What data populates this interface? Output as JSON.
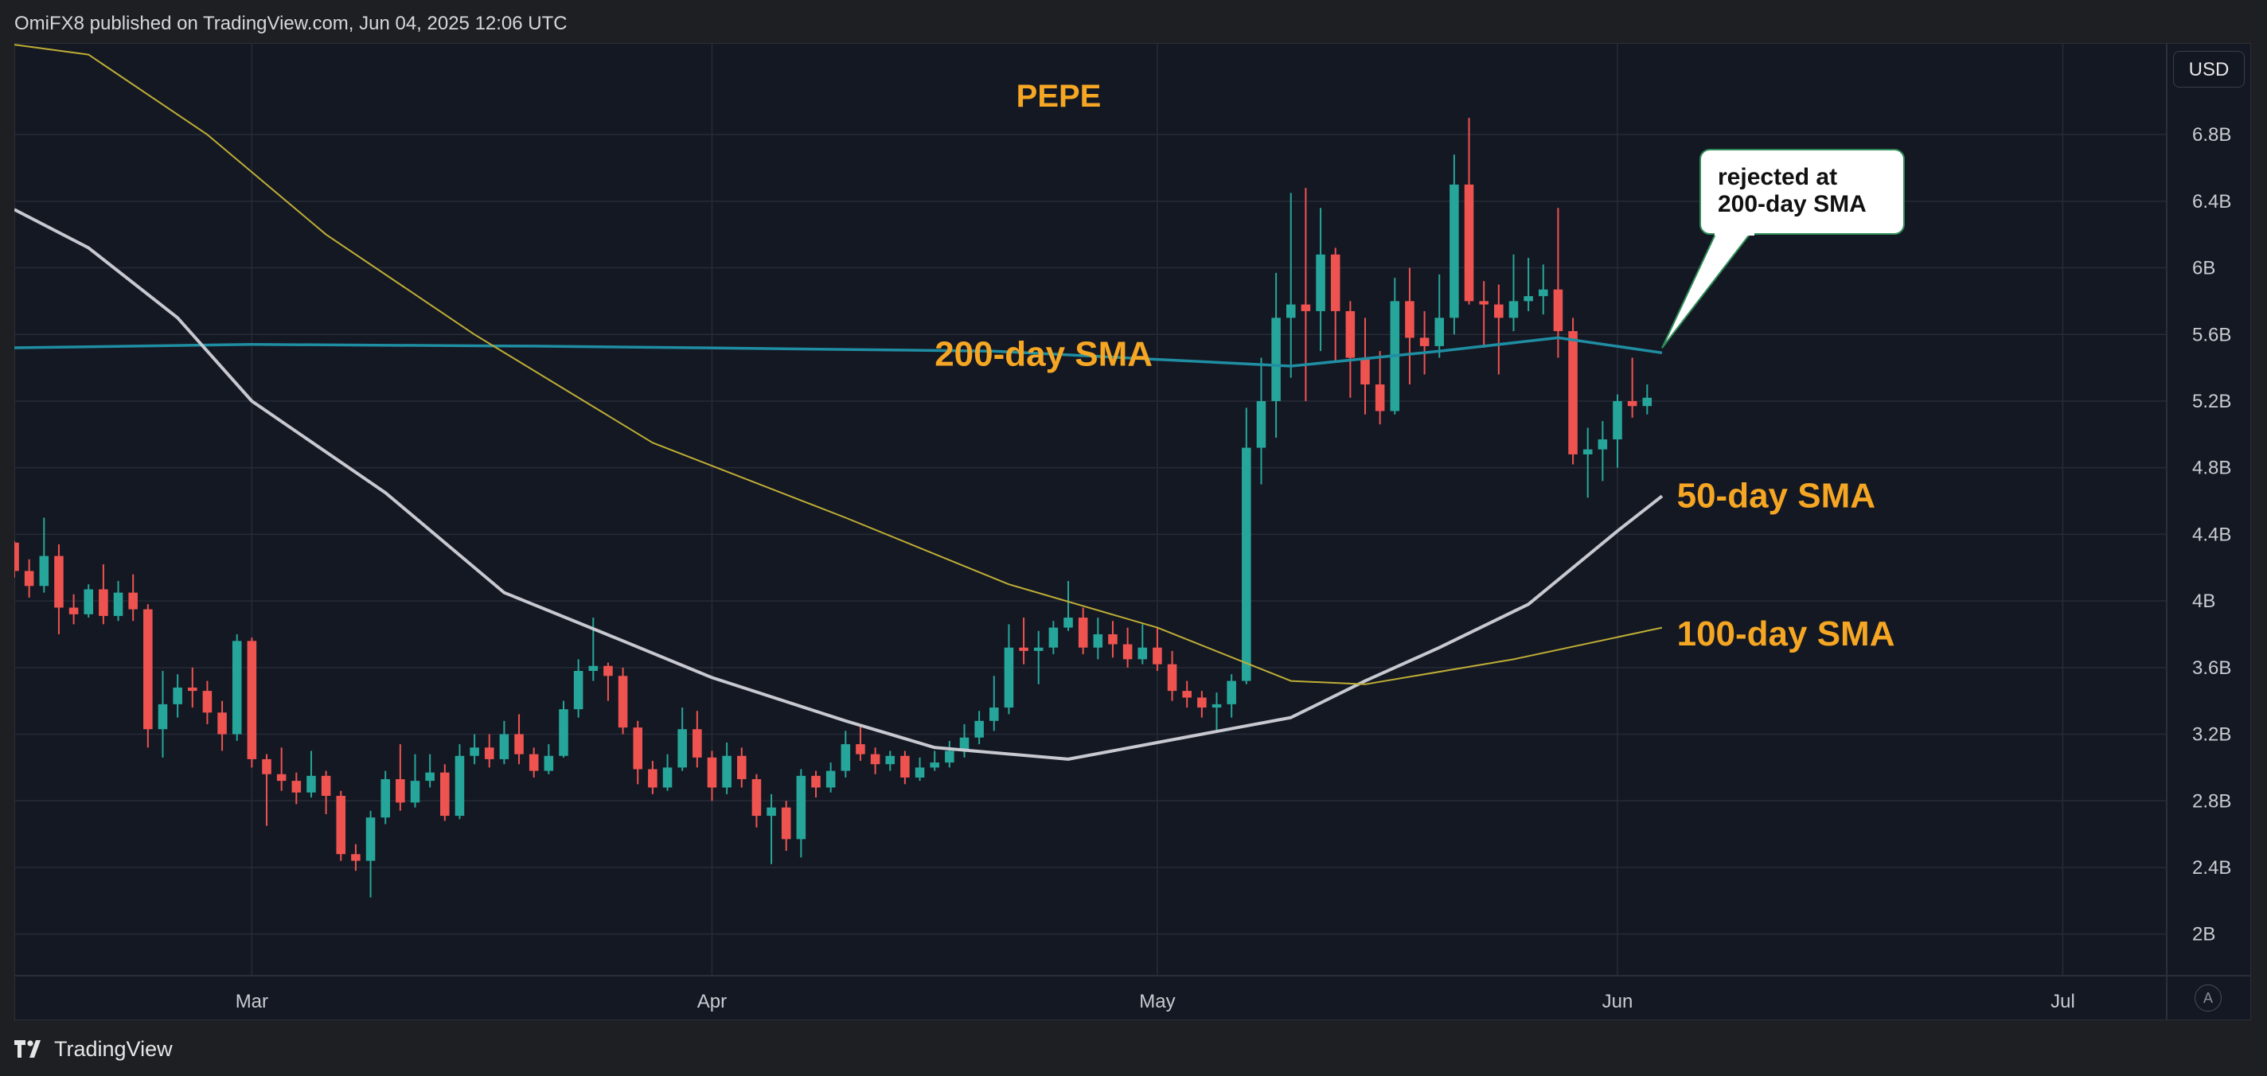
{
  "header": {
    "published_text": "OmiFX8 published on TradingView.com, Jun 04, 2025 12:06 UTC"
  },
  "footer": {
    "brand": "TradingView",
    "logo_icon": "tradingview-logo-icon"
  },
  "controls": {
    "currency": "USD",
    "auto_scale": "A"
  },
  "chart_data": {
    "type": "candlestick",
    "title": "PEPE",
    "y_unit": "market cap (USD)",
    "ylim": [
      1.75,
      7.35
    ],
    "y_ticks": [
      "2B",
      "2.4B",
      "2.8B",
      "3.2B",
      "3.6B",
      "4B",
      "4.4B",
      "4.8B",
      "5.2B",
      "5.6B",
      "6B",
      "6.4B",
      "6.8B"
    ],
    "y_tick_values": [
      2.0,
      2.4,
      2.8,
      3.2,
      3.6,
      4.0,
      4.4,
      4.8,
      5.2,
      5.6,
      6.0,
      6.4,
      6.8
    ],
    "x_start": "2025-02-13",
    "x_end": "2025-07-08",
    "x_ticks": [
      {
        "label": "Mar",
        "date": "2025-03-01"
      },
      {
        "label": "Apr",
        "date": "2025-04-01"
      },
      {
        "label": "May",
        "date": "2025-05-01"
      },
      {
        "label": "Jun",
        "date": "2025-06-01"
      },
      {
        "label": "Jul",
        "date": "2025-07-01"
      }
    ],
    "grid": true,
    "colors": {
      "up": "#26a69a",
      "down": "#ef5350",
      "sma200": "#1f8ea3",
      "sma50": "#c8c9d0",
      "sma100": "#bfae35",
      "label": "#f5a623"
    },
    "candles_start": "2025-02-13",
    "candles": [
      [
        4.35,
        4.18,
        4.36,
        4.14
      ],
      [
        4.18,
        4.09,
        4.25,
        4.02
      ],
      [
        4.09,
        4.27,
        4.5,
        4.05
      ],
      [
        4.27,
        3.96,
        4.34,
        3.8
      ],
      [
        3.96,
        3.92,
        4.04,
        3.86
      ],
      [
        3.92,
        4.07,
        4.1,
        3.9
      ],
      [
        4.07,
        3.91,
        4.22,
        3.86
      ],
      [
        3.91,
        4.05,
        4.12,
        3.88
      ],
      [
        4.05,
        3.95,
        4.16,
        3.88
      ],
      [
        3.95,
        3.23,
        3.98,
        3.12
      ],
      [
        3.23,
        3.38,
        3.58,
        3.06
      ],
      [
        3.38,
        3.48,
        3.56,
        3.3
      ],
      [
        3.48,
        3.46,
        3.6,
        3.36
      ],
      [
        3.46,
        3.33,
        3.52,
        3.26
      ],
      [
        3.33,
        3.2,
        3.4,
        3.1
      ],
      [
        3.2,
        3.76,
        3.8,
        3.16
      ],
      [
        3.76,
        3.05,
        3.78,
        3.0
      ],
      [
        3.05,
        2.96,
        3.08,
        2.65
      ],
      [
        2.96,
        2.92,
        3.12,
        2.86
      ],
      [
        2.92,
        2.85,
        2.97,
        2.78
      ],
      [
        2.85,
        2.95,
        3.1,
        2.82
      ],
      [
        2.95,
        2.83,
        2.98,
        2.72
      ],
      [
        2.83,
        2.48,
        2.86,
        2.44
      ],
      [
        2.48,
        2.44,
        2.54,
        2.38
      ],
      [
        2.44,
        2.7,
        2.74,
        2.22
      ],
      [
        2.7,
        2.93,
        2.98,
        2.66
      ],
      [
        2.93,
        2.79,
        3.14,
        2.74
      ],
      [
        2.79,
        2.92,
        3.08,
        2.76
      ],
      [
        2.92,
        2.97,
        3.08,
        2.88
      ],
      [
        2.97,
        2.71,
        3.02,
        2.68
      ],
      [
        2.71,
        3.07,
        3.14,
        2.69
      ],
      [
        3.07,
        3.12,
        3.2,
        3.02
      ],
      [
        3.12,
        3.05,
        3.2,
        3.0
      ],
      [
        3.05,
        3.2,
        3.28,
        3.02
      ],
      [
        3.2,
        3.08,
        3.32,
        3.02
      ],
      [
        3.08,
        2.98,
        3.12,
        2.94
      ],
      [
        2.98,
        3.07,
        3.14,
        2.96
      ],
      [
        3.07,
        3.35,
        3.4,
        3.06
      ],
      [
        3.35,
        3.58,
        3.65,
        3.3
      ],
      [
        3.58,
        3.61,
        3.9,
        3.52
      ],
      [
        3.61,
        3.55,
        3.63,
        3.4
      ],
      [
        3.55,
        3.24,
        3.6,
        3.2
      ],
      [
        3.24,
        2.99,
        3.28,
        2.9
      ],
      [
        2.99,
        2.88,
        3.04,
        2.84
      ],
      [
        2.88,
        3.0,
        3.08,
        2.86
      ],
      [
        3.0,
        3.23,
        3.36,
        2.98
      ],
      [
        3.23,
        3.06,
        3.34,
        3.0
      ],
      [
        3.06,
        2.88,
        3.1,
        2.8
      ],
      [
        2.88,
        3.07,
        3.15,
        2.84
      ],
      [
        3.07,
        2.93,
        3.12,
        2.88
      ],
      [
        2.93,
        2.71,
        2.96,
        2.64
      ],
      [
        2.71,
        2.76,
        2.84,
        2.42
      ],
      [
        2.76,
        2.57,
        2.8,
        2.5
      ],
      [
        2.57,
        2.95,
        2.99,
        2.46
      ],
      [
        2.95,
        2.88,
        2.98,
        2.82
      ],
      [
        2.88,
        2.98,
        3.03,
        2.85
      ],
      [
        2.98,
        3.14,
        3.22,
        2.94
      ],
      [
        3.14,
        3.08,
        3.26,
        3.04
      ],
      [
        3.08,
        3.02,
        3.12,
        2.96
      ],
      [
        3.02,
        3.07,
        3.1,
        2.98
      ],
      [
        3.07,
        2.94,
        3.1,
        2.9
      ],
      [
        2.94,
        3.0,
        3.06,
        2.92
      ],
      [
        3.0,
        3.03,
        3.1,
        2.98
      ],
      [
        3.03,
        3.1,
        3.16,
        3.0
      ],
      [
        3.1,
        3.18,
        3.26,
        3.06
      ],
      [
        3.18,
        3.28,
        3.34,
        3.14
      ],
      [
        3.28,
        3.36,
        3.55,
        3.22
      ],
      [
        3.36,
        3.72,
        3.86,
        3.32
      ],
      [
        3.72,
        3.7,
        3.9,
        3.62
      ],
      [
        3.7,
        3.72,
        3.82,
        3.5
      ],
      [
        3.72,
        3.84,
        3.88,
        3.68
      ],
      [
        3.84,
        3.9,
        4.12,
        3.82
      ],
      [
        3.9,
        3.72,
        3.96,
        3.68
      ],
      [
        3.72,
        3.8,
        3.9,
        3.65
      ],
      [
        3.8,
        3.74,
        3.88,
        3.66
      ],
      [
        3.74,
        3.65,
        3.84,
        3.6
      ],
      [
        3.65,
        3.72,
        3.86,
        3.62
      ],
      [
        3.72,
        3.62,
        3.84,
        3.58
      ],
      [
        3.62,
        3.46,
        3.7,
        3.4
      ],
      [
        3.46,
        3.42,
        3.52,
        3.36
      ],
      [
        3.42,
        3.36,
        3.46,
        3.3
      ],
      [
        3.36,
        3.38,
        3.45,
        3.22
      ],
      [
        3.38,
        3.52,
        3.56,
        3.3
      ],
      [
        3.52,
        4.92,
        5.16,
        3.5
      ],
      [
        4.92,
        5.2,
        5.46,
        4.7
      ],
      [
        5.2,
        5.7,
        5.97,
        4.98
      ],
      [
        5.7,
        5.78,
        6.45,
        5.34
      ],
      [
        5.78,
        5.74,
        6.48,
        5.2
      ],
      [
        5.74,
        6.08,
        6.36,
        5.5
      ],
      [
        6.08,
        5.74,
        6.12,
        5.44
      ],
      [
        5.74,
        5.46,
        5.8,
        5.22
      ],
      [
        5.46,
        5.3,
        5.7,
        5.12
      ],
      [
        5.3,
        5.14,
        5.5,
        5.06
      ],
      [
        5.14,
        5.8,
        5.94,
        5.12
      ],
      [
        5.8,
        5.58,
        6.0,
        5.3
      ],
      [
        5.58,
        5.53,
        5.74,
        5.36
      ],
      [
        5.53,
        5.7,
        5.96,
        5.46
      ],
      [
        5.7,
        6.5,
        6.68,
        5.6
      ],
      [
        6.5,
        5.8,
        6.9,
        5.78
      ],
      [
        5.8,
        5.78,
        5.92,
        5.52
      ],
      [
        5.78,
        5.7,
        5.9,
        5.36
      ],
      [
        5.7,
        5.8,
        6.08,
        5.62
      ],
      [
        5.8,
        5.83,
        6.06,
        5.74
      ],
      [
        5.83,
        5.87,
        6.02,
        5.72
      ],
      [
        5.87,
        5.62,
        6.36,
        5.46
      ],
      [
        5.62,
        4.88,
        5.7,
        4.82
      ],
      [
        4.88,
        4.91,
        5.04,
        4.62
      ],
      [
        4.91,
        4.97,
        5.08,
        4.72
      ],
      [
        4.97,
        5.2,
        5.24,
        4.8
      ],
      [
        5.2,
        5.17,
        5.46,
        5.1
      ],
      [
        5.17,
        5.22,
        5.3,
        5.12
      ]
    ],
    "series": [
      {
        "name": "200-day SMA",
        "style": "sma200",
        "points": [
          [
            "2025-02-13",
            5.52
          ],
          [
            "2025-03-01",
            5.54
          ],
          [
            "2025-03-20",
            5.53
          ],
          [
            "2025-03-31",
            5.52
          ],
          [
            "2025-04-20",
            5.5
          ],
          [
            "2025-05-01",
            5.45
          ],
          [
            "2025-05-10",
            5.41
          ],
          [
            "2025-05-20",
            5.5
          ],
          [
            "2025-05-28",
            5.58
          ],
          [
            "2025-06-04",
            5.49
          ]
        ]
      },
      {
        "name": "50-day SMA",
        "style": "sma50",
        "points": [
          [
            "2025-02-13",
            6.35
          ],
          [
            "2025-02-18",
            6.12
          ],
          [
            "2025-02-24",
            5.7
          ],
          [
            "2025-03-01",
            5.2
          ],
          [
            "2025-03-10",
            4.65
          ],
          [
            "2025-03-18",
            4.05
          ],
          [
            "2025-03-26",
            3.76
          ],
          [
            "2025-04-01",
            3.54
          ],
          [
            "2025-04-10",
            3.28
          ],
          [
            "2025-04-16",
            3.12
          ],
          [
            "2025-04-25",
            3.05
          ],
          [
            "2025-05-01",
            3.15
          ],
          [
            "2025-05-10",
            3.3
          ],
          [
            "2025-05-15",
            3.52
          ],
          [
            "2025-05-20",
            3.72
          ],
          [
            "2025-05-26",
            3.98
          ],
          [
            "2025-06-01",
            4.42
          ],
          [
            "2025-06-04",
            4.63
          ]
        ]
      },
      {
        "name": "100-day SMA",
        "style": "sma100",
        "points": [
          [
            "2025-02-13",
            7.34
          ],
          [
            "2025-02-18",
            7.28
          ],
          [
            "2025-02-26",
            6.8
          ],
          [
            "2025-03-06",
            6.2
          ],
          [
            "2025-03-16",
            5.6
          ],
          [
            "2025-03-28",
            4.95
          ],
          [
            "2025-04-10",
            4.5
          ],
          [
            "2025-04-21",
            4.1
          ],
          [
            "2025-05-01",
            3.84
          ],
          [
            "2025-05-10",
            3.52
          ],
          [
            "2025-05-15",
            3.5
          ],
          [
            "2025-05-25",
            3.65
          ],
          [
            "2025-06-04",
            3.84
          ]
        ]
      }
    ],
    "annotations": [
      {
        "text": "PEPE",
        "kind": "title"
      },
      {
        "text": "200-day SMA",
        "date": "2025-04-16",
        "value": 5.48,
        "kind": "label"
      },
      {
        "text": "50-day SMA",
        "date": "2025-06-05",
        "value": 4.63,
        "kind": "label"
      },
      {
        "text": "100-day SMA",
        "date": "2025-06-05",
        "value": 3.8,
        "kind": "label"
      },
      {
        "text_lines": [
          "rejected at",
          "200-day SMA"
        ],
        "kind": "callout",
        "pointer_date": "2025-06-04",
        "pointer_value": 5.49
      }
    ]
  }
}
